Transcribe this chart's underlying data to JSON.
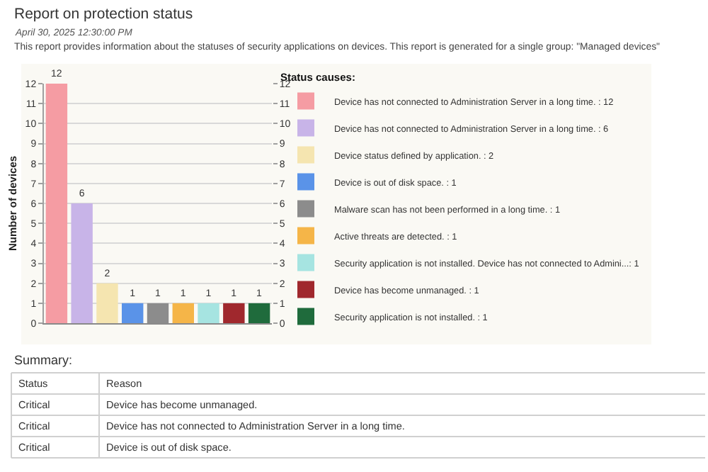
{
  "chart_data": {
    "type": "bar",
    "title": "Report on protection status",
    "subtitle": "April 30, 2025 12:30:00 PM",
    "ylabel": "Number of devices",
    "legend_title": "Status causes:",
    "annotations": [
      "This report provides information about the statuses of security applications on devices. This report is generated for a single group: \"Managed devices\"",
      "Summary:",
      "Status",
      "Reason",
      "Critical",
      "Device has become unmanaged.",
      "Critical",
      "Device has not connected to Administration Server in a long time.",
      "Critical",
      "Device is out of disk space."
    ],
    "categories": [
      null,
      null,
      null,
      null,
      null,
      null,
      null,
      null,
      null
    ],
    "series": [
      {
        "name": "Device has not connected to Administration Server in a long time. : 12",
        "color": "#f59ca3",
        "values": [
          12,
          null,
          null,
          null,
          null,
          null,
          null,
          null,
          null
        ]
      },
      {
        "name": "Device has not connected to Administration Server in a long time. : 6",
        "color": "#c8b4e8",
        "values": [
          null,
          6,
          null,
          null,
          null,
          null,
          null,
          null,
          null
        ]
      },
      {
        "name": "Device status defined by application. : 2",
        "color": "#f5e5b0",
        "values": [
          null,
          null,
          2,
          null,
          null,
          null,
          null,
          null,
          null
        ]
      },
      {
        "name": "Device is out of disk space. : 1",
        "color": "#5a93e8",
        "values": [
          null,
          null,
          null,
          1,
          null,
          null,
          null,
          null,
          null
        ]
      },
      {
        "name": "Malware scan has not been performed in a long time. : 1",
        "color": "#8c8c8c",
        "values": [
          null,
          null,
          null,
          null,
          1,
          null,
          null,
          null,
          null
        ]
      },
      {
        "name": "Active threats are detected. : 1",
        "color": "#f5b548",
        "values": [
          null,
          null,
          null,
          null,
          null,
          1,
          null,
          null,
          null
        ]
      },
      {
        "name": "Security application is not installed. Device has not connected to Admini...: 1",
        "color": "#a6e4e1",
        "values": [
          null,
          null,
          null,
          null,
          null,
          null,
          1,
          null,
          null
        ]
      },
      {
        "name": "Device has become unmanaged. : 1",
        "color": "#a0282d",
        "values": [
          null,
          null,
          null,
          null,
          null,
          null,
          null,
          1,
          null
        ]
      },
      {
        "name": "Security application is not installed. : 1",
        "color": "#1f6b3c",
        "values": [
          null,
          null,
          null,
          null,
          null,
          null,
          null,
          null,
          1
        ]
      }
    ],
    "ylim": [
      0,
      12
    ],
    "yticks": [
      0,
      1,
      2,
      3,
      4,
      5,
      6,
      7,
      8,
      9,
      10,
      11,
      12
    ],
    "y2lim": [
      0,
      12
    ],
    "y2ticks": [
      0,
      1,
      2,
      3,
      4,
      5,
      6,
      7,
      8,
      9,
      10,
      11,
      12
    ],
    "grid": "y",
    "legend": "right",
    "data_labels": true
  }
}
